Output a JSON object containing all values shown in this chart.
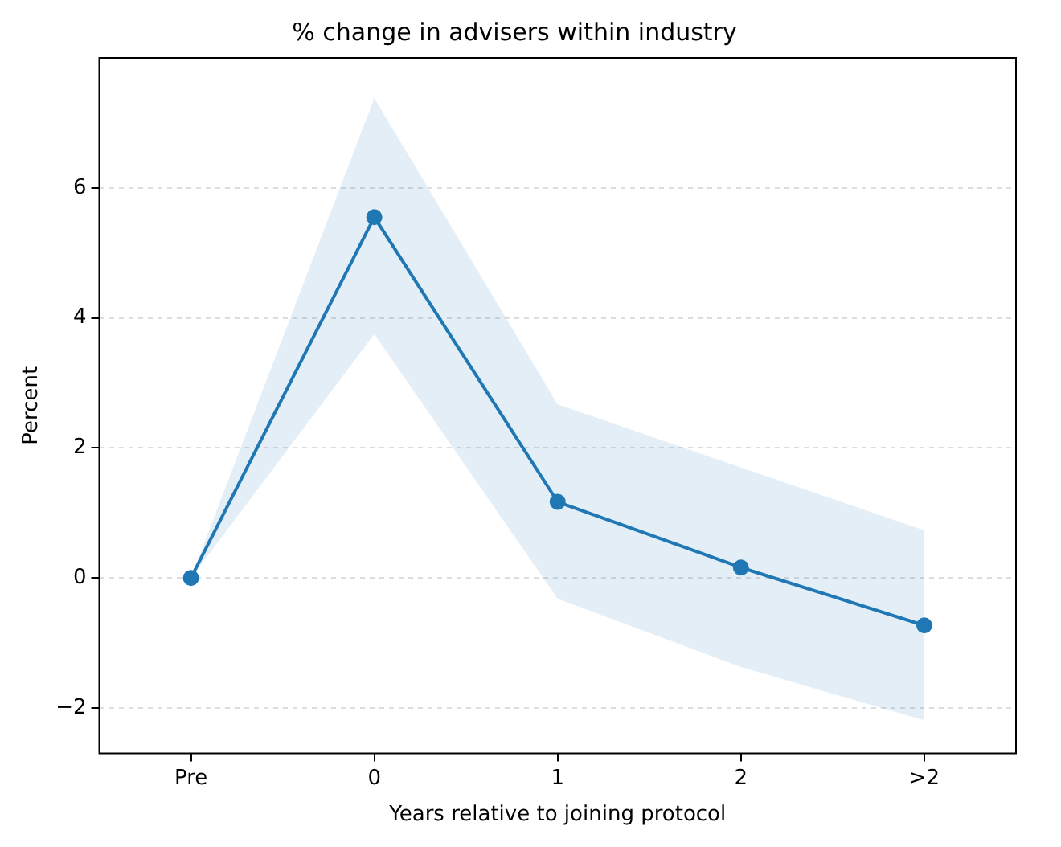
{
  "chart_data": {
    "type": "line",
    "title": "% change in advisers within industry",
    "xlabel": "Years relative to joining protocol",
    "ylabel": "Percent",
    "categories": [
      "Pre",
      "0",
      "1",
      "2",
      ">2"
    ],
    "series": [
      {
        "color": "#1f77b4",
        "values": [
          0,
          5.55,
          1.17,
          0.16,
          -0.73
        ],
        "lower": [
          0,
          3.75,
          -0.32,
          -1.37,
          -2.19
        ],
        "upper": [
          0,
          7.38,
          2.67,
          1.7,
          0.73
        ]
      }
    ],
    "ylim": [
      -2.7,
      8.0
    ],
    "yticks": [
      -2,
      0,
      2,
      4,
      6
    ],
    "grid": "y",
    "marker": "circle",
    "line_style": "solid",
    "legend": false
  }
}
